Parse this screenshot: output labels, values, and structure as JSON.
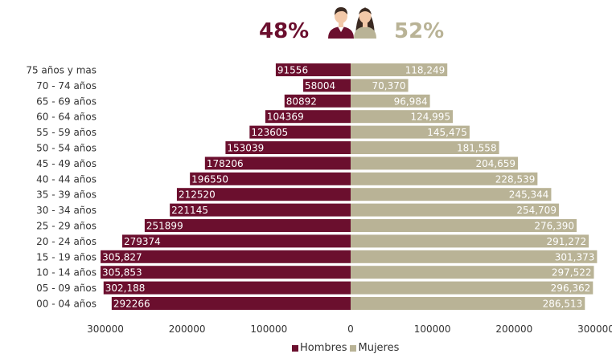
{
  "header": {
    "men_pct": "48%",
    "women_pct": "52%"
  },
  "icons": {
    "men": "man-avatar-icon",
    "women": "woman-avatar-icon"
  },
  "colors": {
    "men": "#6b0f2e",
    "women": "#b9b396"
  },
  "legend": {
    "men": "Hombres",
    "women": "Mujeres"
  },
  "chart_data": {
    "type": "bar",
    "orientation": "horizontal-population-pyramid",
    "categories": [
      "00 - 04 años",
      "05 - 09 años",
      "10 - 14 años",
      "15 - 19 años",
      "20 - 24 años",
      "25 - 29 años",
      "30 - 34 años",
      "35 - 39 años",
      "40 - 44 años",
      "45 - 49 años",
      "50 - 54 años",
      "55 - 59 años",
      "60 - 64 años",
      "65 - 69 años",
      "70 - 74 años",
      "75 años y mas"
    ],
    "series": [
      {
        "name": "Hombres",
        "values": [
          292266,
          302188,
          305853,
          305827,
          279374,
          251899,
          221145,
          212520,
          196550,
          178206,
          153039,
          123605,
          104369,
          80892,
          58004,
          91556
        ],
        "labels": [
          "292266",
          "302,188",
          "305,853",
          "305,827",
          "279374",
          "251899",
          "221145",
          "212520",
          "196550",
          "178206",
          "153039",
          "123605",
          "104369",
          "80892",
          "58004",
          "91556"
        ]
      },
      {
        "name": "Mujeres",
        "values": [
          286513,
          296362,
          297522,
          301373,
          291272,
          276390,
          254709,
          245344,
          228539,
          204659,
          181558,
          145475,
          124995,
          96984,
          70370,
          118249
        ],
        "labels": [
          "286,513",
          "296,362",
          "297,522",
          "301,373",
          "291,272",
          "276,390",
          "254,709",
          "245,344",
          "228,539",
          "204,659",
          "181,558",
          "145,475",
          "124,995",
          "96,984",
          "70,370",
          "118,249"
        ]
      }
    ],
    "xticks": [
      "300000",
      "200000",
      "100000",
      "0",
      "100000",
      "200000",
      "300000"
    ],
    "xlim": [
      -300000,
      300000
    ],
    "legend_position": "bottom"
  }
}
